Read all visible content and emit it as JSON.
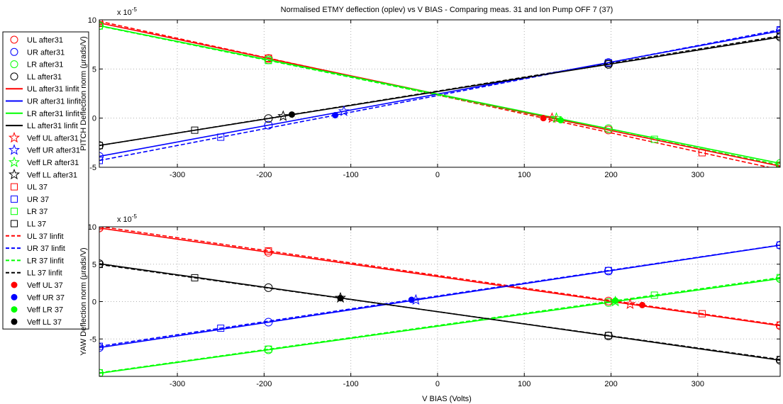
{
  "title": "Normalised ETMY deflection (oplev) vs V BIAS - Comparing meas. 31 and Ion Pump OFF 7 (37)",
  "xlabel": "V BIAS (Volts)",
  "colors": {
    "UL": "#ff0000",
    "UR": "#0000ff",
    "LR": "#00ff00",
    "LL": "#000000"
  },
  "legend": {
    "placement": "left",
    "entries": [
      {
        "label": "UL after31",
        "color": "UL",
        "marker": "circle",
        "line": "none",
        "fill": false
      },
      {
        "label": "UR after31",
        "color": "UR",
        "marker": "circle",
        "line": "none",
        "fill": false
      },
      {
        "label": "LR after31",
        "color": "LR",
        "marker": "circle",
        "line": "none",
        "fill": false
      },
      {
        "label": "LL after31",
        "color": "LL",
        "marker": "circle",
        "line": "none",
        "fill": false
      },
      {
        "label": "UL after31 linfit",
        "color": "UL",
        "marker": "none",
        "line": "solid",
        "fill": false
      },
      {
        "label": "UR after31 linfit",
        "color": "UR",
        "marker": "none",
        "line": "solid",
        "fill": false
      },
      {
        "label": "LR after31 linfit",
        "color": "LR",
        "marker": "none",
        "line": "solid",
        "fill": false
      },
      {
        "label": "LL after31 linfit",
        "color": "LL",
        "marker": "none",
        "line": "solid",
        "fill": false
      },
      {
        "label": "Veff UL after31",
        "color": "UL",
        "marker": "star",
        "line": "none",
        "fill": false
      },
      {
        "label": "Veff UR after31",
        "color": "UR",
        "marker": "star",
        "line": "none",
        "fill": false
      },
      {
        "label": "Veff LR after31",
        "color": "LR",
        "marker": "star",
        "line": "none",
        "fill": false
      },
      {
        "label": "Veff LL after31",
        "color": "LL",
        "marker": "star",
        "line": "none",
        "fill": false
      },
      {
        "label": "UL 37",
        "color": "UL",
        "marker": "square",
        "line": "none",
        "fill": false
      },
      {
        "label": "UR 37",
        "color": "UR",
        "marker": "square",
        "line": "none",
        "fill": false
      },
      {
        "label": "LR 37",
        "color": "LR",
        "marker": "square",
        "line": "none",
        "fill": false
      },
      {
        "label": "LL 37",
        "color": "LL",
        "marker": "square",
        "line": "none",
        "fill": false
      },
      {
        "label": "UL 37 linfit",
        "color": "UL",
        "marker": "none",
        "line": "dashed",
        "fill": false
      },
      {
        "label": "UR 37 linfit",
        "color": "UR",
        "marker": "none",
        "line": "dashed",
        "fill": false
      },
      {
        "label": "LR 37 linfit",
        "color": "LR",
        "marker": "none",
        "line": "dashed",
        "fill": false
      },
      {
        "label": "LL 37 linfit",
        "color": "LL",
        "marker": "none",
        "line": "dashed",
        "fill": false
      },
      {
        "label": "Veff UL 37",
        "color": "UL",
        "marker": "dot",
        "line": "none",
        "fill": true
      },
      {
        "label": "Veff UR 37",
        "color": "UR",
        "marker": "dot",
        "line": "none",
        "fill": true
      },
      {
        "label": "Veff LR 37",
        "color": "LR",
        "marker": "dot",
        "line": "none",
        "fill": true
      },
      {
        "label": "Veff LL 37",
        "color": "LL",
        "marker": "dot",
        "line": "none",
        "fill": true
      }
    ]
  },
  "chart_data": [
    {
      "type": "scatter",
      "name": "pitch",
      "ylabel": "PITCH Deflection norm (μrads/V)",
      "exponent_label": "x 10",
      "exponent_power": "-5",
      "xlim": [
        -390,
        395
      ],
      "ylim": [
        -5,
        10
      ],
      "xticks": [
        -300,
        -200,
        -100,
        0,
        100,
        200,
        300
      ],
      "yticks": [
        -5,
        0,
        5,
        10
      ],
      "grid": true,
      "fits": {
        "after31": {
          "UL": [
            2.45,
            -0.01857
          ],
          "UR": [
            2.45,
            0.01625
          ],
          "LR": [
            2.45,
            -0.01785
          ],
          "LL": [
            2.7,
            0.01405
          ]
        },
        "37": {
          "UL": [
            2.35,
            -0.01925
          ],
          "UR": [
            2.3,
            0.01695
          ],
          "LR": [
            2.35,
            -0.01802
          ],
          "LL": [
            2.75,
            0.0142
          ]
        }
      },
      "points": {
        "after31": {
          "UL": [
            -390,
            -195,
            197,
            395
          ],
          "UR": [
            -390,
            -195,
            197,
            395
          ],
          "LR": [
            -390,
            -195,
            197,
            395
          ],
          "LL": [
            -390,
            -195,
            197,
            395
          ]
        },
        "37": {
          "UL": [
            -390,
            -195,
            305,
            395
          ],
          "UR": [
            -390,
            -250,
            197,
            395
          ],
          "LR": [
            -390,
            -195,
            250,
            395
          ],
          "LL": [
            -390,
            -280,
            197,
            395
          ]
        }
      },
      "veff": {
        "after31": {
          "UL": 132,
          "UR": -108,
          "LR": 137,
          "LL": -178
        },
        "37": {
          "UL": 122,
          "UR": -118,
          "LR": 142,
          "LL": -168
        }
      }
    },
    {
      "type": "scatter",
      "name": "yaw",
      "ylabel": "YAW Deflection norm (μrads/V)",
      "xlabel": "V BIAS (Volts)",
      "exponent_label": "x 10",
      "exponent_power": "-5",
      "xlim": [
        -390,
        395
      ],
      "ylim": [
        -10,
        10
      ],
      "xticks": [
        -300,
        -200,
        -100,
        0,
        100,
        200,
        300
      ],
      "yticks": [
        -5,
        0,
        5,
        10
      ],
      "grid": true,
      "fits": {
        "after31": {
          "UL": [
            3.35,
            -0.01665
          ],
          "UR": [
            0.65,
            0.01745
          ],
          "LR": [
            -3.3,
            0.01613
          ],
          "LL": [
            -1.35,
            -0.01645
          ]
        },
        "37": {
          "UL": [
            3.5,
            -0.0168
          ],
          "UR": [
            0.75,
            0.01725
          ],
          "LR": [
            -3.2,
            0.01623
          ],
          "LL": [
            -1.35,
            -0.0162
          ]
        }
      },
      "points": {
        "after31": {
          "UL": [
            -390,
            -195,
            197,
            395
          ],
          "UR": [
            -390,
            -195,
            197,
            395
          ],
          "LR": [
            -390,
            -195,
            197,
            395
          ],
          "LL": [
            -390,
            -195,
            197,
            395
          ]
        },
        "37": {
          "UL": [
            -390,
            -195,
            305,
            395
          ],
          "UR": [
            -390,
            -250,
            197,
            395
          ],
          "LR": [
            -390,
            -195,
            250,
            395
          ],
          "LL": [
            -390,
            -280,
            197,
            395
          ]
        }
      },
      "veff": {
        "after31": {
          "UL": 222,
          "UR": -25,
          "LR": 205,
          "LL": -112
        },
        "37": {
          "UL": 236,
          "UR": -30,
          "LR": 205,
          "LL": -112
        }
      }
    }
  ]
}
